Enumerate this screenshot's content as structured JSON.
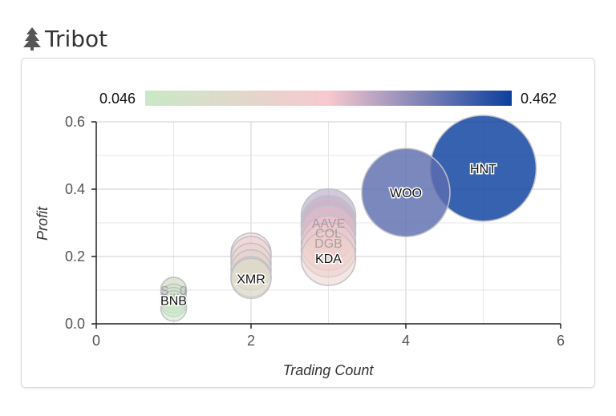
{
  "app": {
    "title": "Tribot",
    "icon": "tree-icon"
  },
  "chart_data": {
    "type": "scatter",
    "title": "",
    "xlabel": "Trading Count",
    "ylabel": "Profit",
    "xlim": [
      0,
      6
    ],
    "ylim": [
      0,
      0.6
    ],
    "xticks": [
      "0",
      "2",
      "4",
      "6"
    ],
    "yticks": [
      "0.0",
      "0.2",
      "0.4",
      "0.6"
    ],
    "grid": true,
    "colorbar": {
      "min_label": "0.046",
      "max_label": "0.462",
      "min": 0.046,
      "max": 0.462,
      "colors": [
        "#c9e8c6",
        "#f8c8cf",
        "#0b3f9e"
      ]
    },
    "points": [
      {
        "label": "",
        "x": 1,
        "y": 0.046,
        "value": 0.046
      },
      {
        "label": "",
        "x": 1,
        "y": 0.06,
        "value": 0.06
      },
      {
        "label": "",
        "x": 1,
        "y": 0.08,
        "value": 0.08
      },
      {
        "label": "BNB",
        "x": 1,
        "y": 0.07,
        "value": 0.07
      },
      {
        "label": "",
        "x": 1,
        "y": 0.1,
        "value": 0.1
      },
      {
        "label": "S...0",
        "x": 1,
        "y": 0.1,
        "value": 0.1
      },
      {
        "label": "",
        "x": 2,
        "y": 0.14,
        "value": 0.14
      },
      {
        "label": "",
        "x": 2,
        "y": 0.16,
        "value": 0.16
      },
      {
        "label": "",
        "x": 2,
        "y": 0.18,
        "value": 0.18
      },
      {
        "label": "",
        "x": 2,
        "y": 0.2,
        "value": 0.2
      },
      {
        "label": "",
        "x": 2,
        "y": 0.21,
        "value": 0.21
      },
      {
        "label": "XMR",
        "x": 2,
        "y": 0.135,
        "value": 0.135
      },
      {
        "label": "",
        "x": 3,
        "y": 0.32,
        "value": 0.32
      },
      {
        "label": "AAVE",
        "x": 3,
        "y": 0.3,
        "value": 0.3
      },
      {
        "label": "",
        "x": 3,
        "y": 0.29,
        "value": 0.29
      },
      {
        "label": "COL",
        "x": 3,
        "y": 0.27,
        "value": 0.27
      },
      {
        "label": "DGB",
        "x": 3,
        "y": 0.24,
        "value": 0.24
      },
      {
        "label": "",
        "x": 3,
        "y": 0.22,
        "value": 0.22
      },
      {
        "label": "KDA",
        "x": 3,
        "y": 0.195,
        "value": 0.195
      },
      {
        "label": "WOO",
        "x": 4,
        "y": 0.39,
        "value": 0.39
      },
      {
        "label": "HNT",
        "x": 5,
        "y": 0.462,
        "value": 0.462
      }
    ]
  }
}
